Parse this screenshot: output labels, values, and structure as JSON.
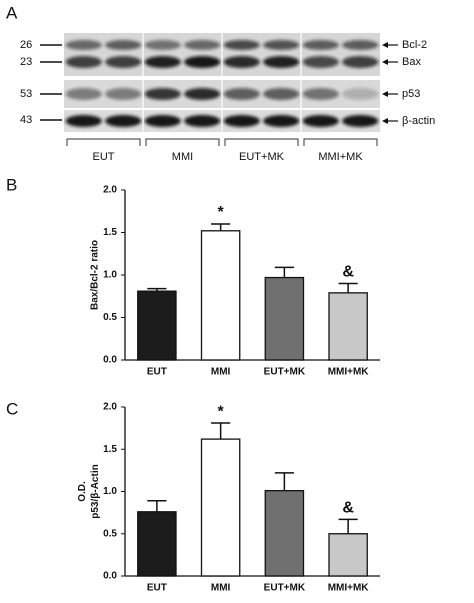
{
  "blot": {
    "panel": "A",
    "markers": [
      26,
      23,
      53,
      43
    ],
    "bands": [
      "Bcl-2",
      "Bax",
      "p53",
      "β-actin"
    ],
    "groups": [
      "EUT",
      "MMI",
      "EUT+MK",
      "MMI+MK"
    ]
  },
  "chart_data": [
    {
      "type": "bar",
      "panel": "B",
      "y_label": [
        "Bax/Bcl-2 ratio"
      ],
      "categories": [
        "EUT",
        "MMI",
        "EUT+MK",
        "MMI+MK"
      ],
      "values": [
        0.81,
        1.52,
        0.97,
        0.79
      ],
      "errors": [
        0.03,
        0.08,
        0.12,
        0.11
      ],
      "colors": [
        "#1c1c1c",
        "#ffffff",
        "#707070",
        "#c8c8c8"
      ],
      "annotations": [
        null,
        "*",
        null,
        "&"
      ],
      "ylim": [
        0,
        2
      ],
      "yticks": [
        {
          "value": 0,
          "label": "0.0"
        },
        0.5,
        {
          "value": 1,
          "label": "1.0"
        },
        1.5,
        {
          "value": 2,
          "label": "2.0"
        }
      ]
    },
    {
      "type": "bar",
      "panel": "C",
      "y_label": [
        "O.D.",
        "p53/β-Actin"
      ],
      "categories": [
        "EUT",
        "MMI",
        "EUT+MK",
        "MMI+MK"
      ],
      "values": [
        0.76,
        1.62,
        1.01,
        0.5
      ],
      "errors": [
        0.13,
        0.19,
        0.21,
        0.17
      ],
      "colors": [
        "#1c1c1c",
        "#ffffff",
        "#707070",
        "#c8c8c8"
      ],
      "annotations": [
        null,
        "*",
        null,
        "&"
      ],
      "ylim": [
        0,
        2
      ],
      "yticks": [
        {
          "value": 0,
          "label": "0.0"
        },
        0.5,
        {
          "value": 1,
          "label": "1.0"
        },
        1.5,
        {
          "value": 2,
          "label": "2.0"
        }
      ]
    }
  ]
}
